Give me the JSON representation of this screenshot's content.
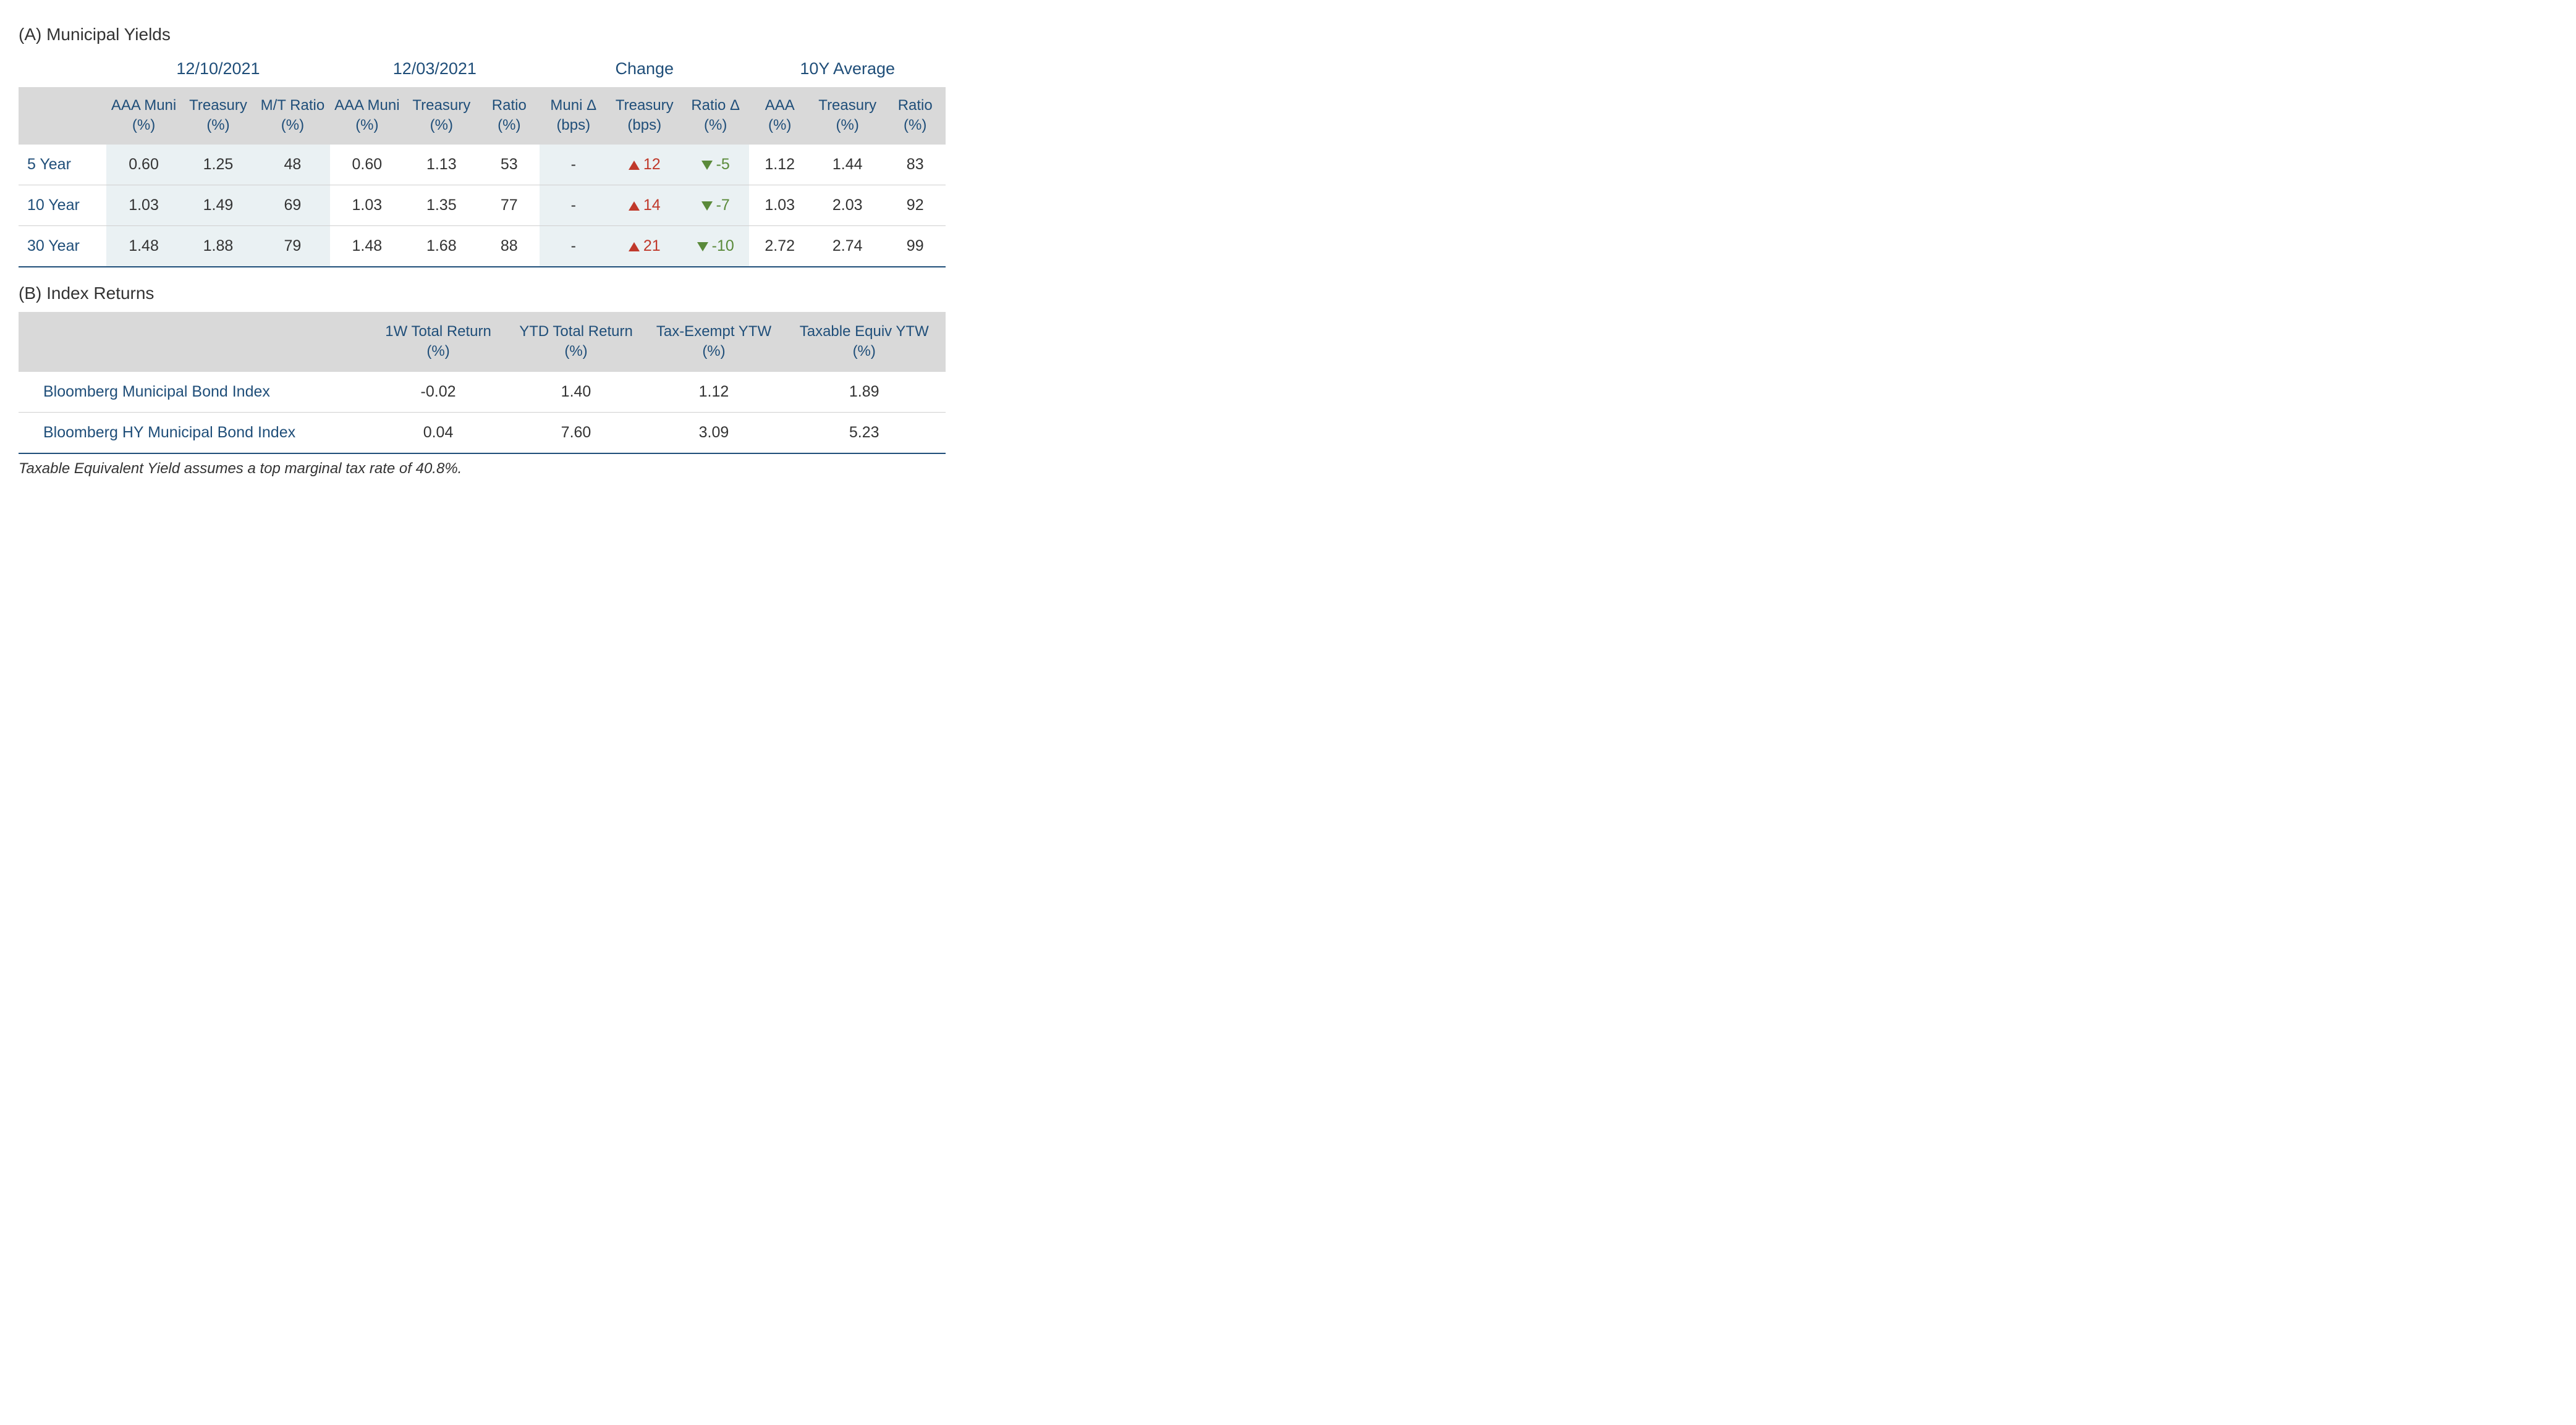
{
  "colors": {
    "header_text": "#1f4e79",
    "header_bg": "#d9d9d9",
    "shade_bg": "#eaf1f3",
    "body_text": "#333333",
    "row_border": "#cfcfcf",
    "bottom_border": "#1f4e79",
    "up_color": "#c0392b",
    "down_color": "#5a8a3a",
    "page_bg": "#ffffff"
  },
  "typography": {
    "section_title_pt": 21,
    "group_header_pt": 20,
    "col_header_pt": 18,
    "cell_pt": 19,
    "footnote_pt": 18,
    "font_family": "Segoe UI / Helvetica Neue"
  },
  "sectionA": {
    "title": "(A) Municipal Yields",
    "groups": [
      "12/10/2021",
      "12/03/2021",
      "Change",
      "10Y Average"
    ],
    "columns": {
      "g1": [
        "AAA Muni (%)",
        "Treasury (%)",
        "M/T Ratio (%)"
      ],
      "g2": [
        "AAA Muni (%)",
        "Treasury (%)",
        "Ratio (%)"
      ],
      "g3": [
        "Muni Δ (bps)",
        "Treasury (bps)",
        "Ratio Δ (%)"
      ],
      "g4": [
        "AAA (%)",
        "Treasury (%)",
        "Ratio (%)"
      ]
    },
    "rows": [
      {
        "label": "5 Year",
        "g1": [
          "0.60",
          "1.25",
          "48"
        ],
        "g2": [
          "0.60",
          "1.13",
          "53"
        ],
        "g3": [
          {
            "value": "-",
            "direction": "none"
          },
          {
            "value": "12",
            "direction": "up"
          },
          {
            "value": "-5",
            "direction": "down"
          }
        ],
        "g4": [
          "1.12",
          "1.44",
          "83"
        ]
      },
      {
        "label": "10 Year",
        "g1": [
          "1.03",
          "1.49",
          "69"
        ],
        "g2": [
          "1.03",
          "1.35",
          "77"
        ],
        "g3": [
          {
            "value": "-",
            "direction": "none"
          },
          {
            "value": "14",
            "direction": "up"
          },
          {
            "value": "-7",
            "direction": "down"
          }
        ],
        "g4": [
          "1.03",
          "2.03",
          "92"
        ]
      },
      {
        "label": "30 Year",
        "g1": [
          "1.48",
          "1.88",
          "79"
        ],
        "g2": [
          "1.48",
          "1.68",
          "88"
        ],
        "g3": [
          {
            "value": "-",
            "direction": "none"
          },
          {
            "value": "21",
            "direction": "up"
          },
          {
            "value": "-10",
            "direction": "down"
          }
        ],
        "g4": [
          "2.72",
          "2.74",
          "99"
        ]
      }
    ]
  },
  "sectionB": {
    "title": "(B) Index Returns",
    "columns": [
      "1W Total Return (%)",
      "YTD Total Return (%)",
      "Tax-Exempt YTW (%)",
      "Taxable Equiv YTW (%)"
    ],
    "rows": [
      {
        "label": "Bloomberg Municipal Bond Index",
        "values": [
          "-0.02",
          "1.40",
          "1.12",
          "1.89"
        ]
      },
      {
        "label": "Bloomberg HY Municipal Bond Index",
        "values": [
          "0.04",
          "7.60",
          "3.09",
          "5.23"
        ]
      }
    ]
  },
  "footnote": "Taxable Equivalent Yield assumes a top marginal tax rate of 40.8%."
}
